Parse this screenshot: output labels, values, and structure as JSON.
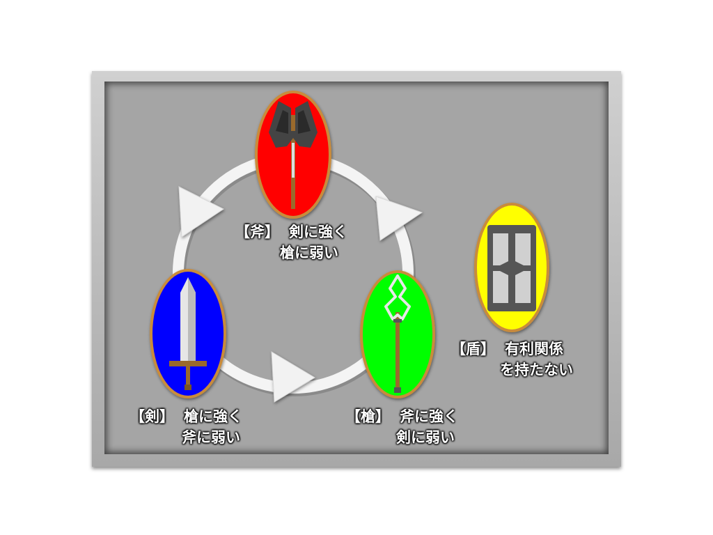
{
  "units": {
    "axe": {
      "tag": "【斧】",
      "strong": "剣に強く",
      "weak": "槍に弱い",
      "color": "#ff0000"
    },
    "sword": {
      "tag": "【剣】",
      "strong": "槍に強く",
      "weak": "斧に弱い",
      "color": "#0000ff"
    },
    "spear": {
      "tag": "【槍】",
      "strong": "斧に強く",
      "weak": "剣に弱い",
      "color": "#00ff00"
    },
    "shield": {
      "tag": "【盾】",
      "strong": "有利関係",
      "weak": "を持たない",
      "color": "#ffff00"
    }
  },
  "cycle": [
    "axe",
    "spear",
    "sword"
  ]
}
